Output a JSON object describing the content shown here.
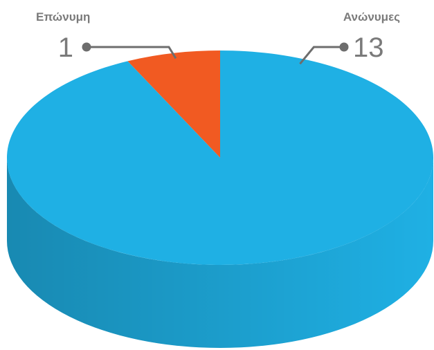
{
  "chart_data": {
    "type": "pie3d",
    "categories": [
      "Επώνυμη",
      "Ανώνυμες"
    ],
    "values": [
      1,
      13
    ],
    "colors": [
      "#f15a22",
      "#1fb0e4"
    ]
  }
}
